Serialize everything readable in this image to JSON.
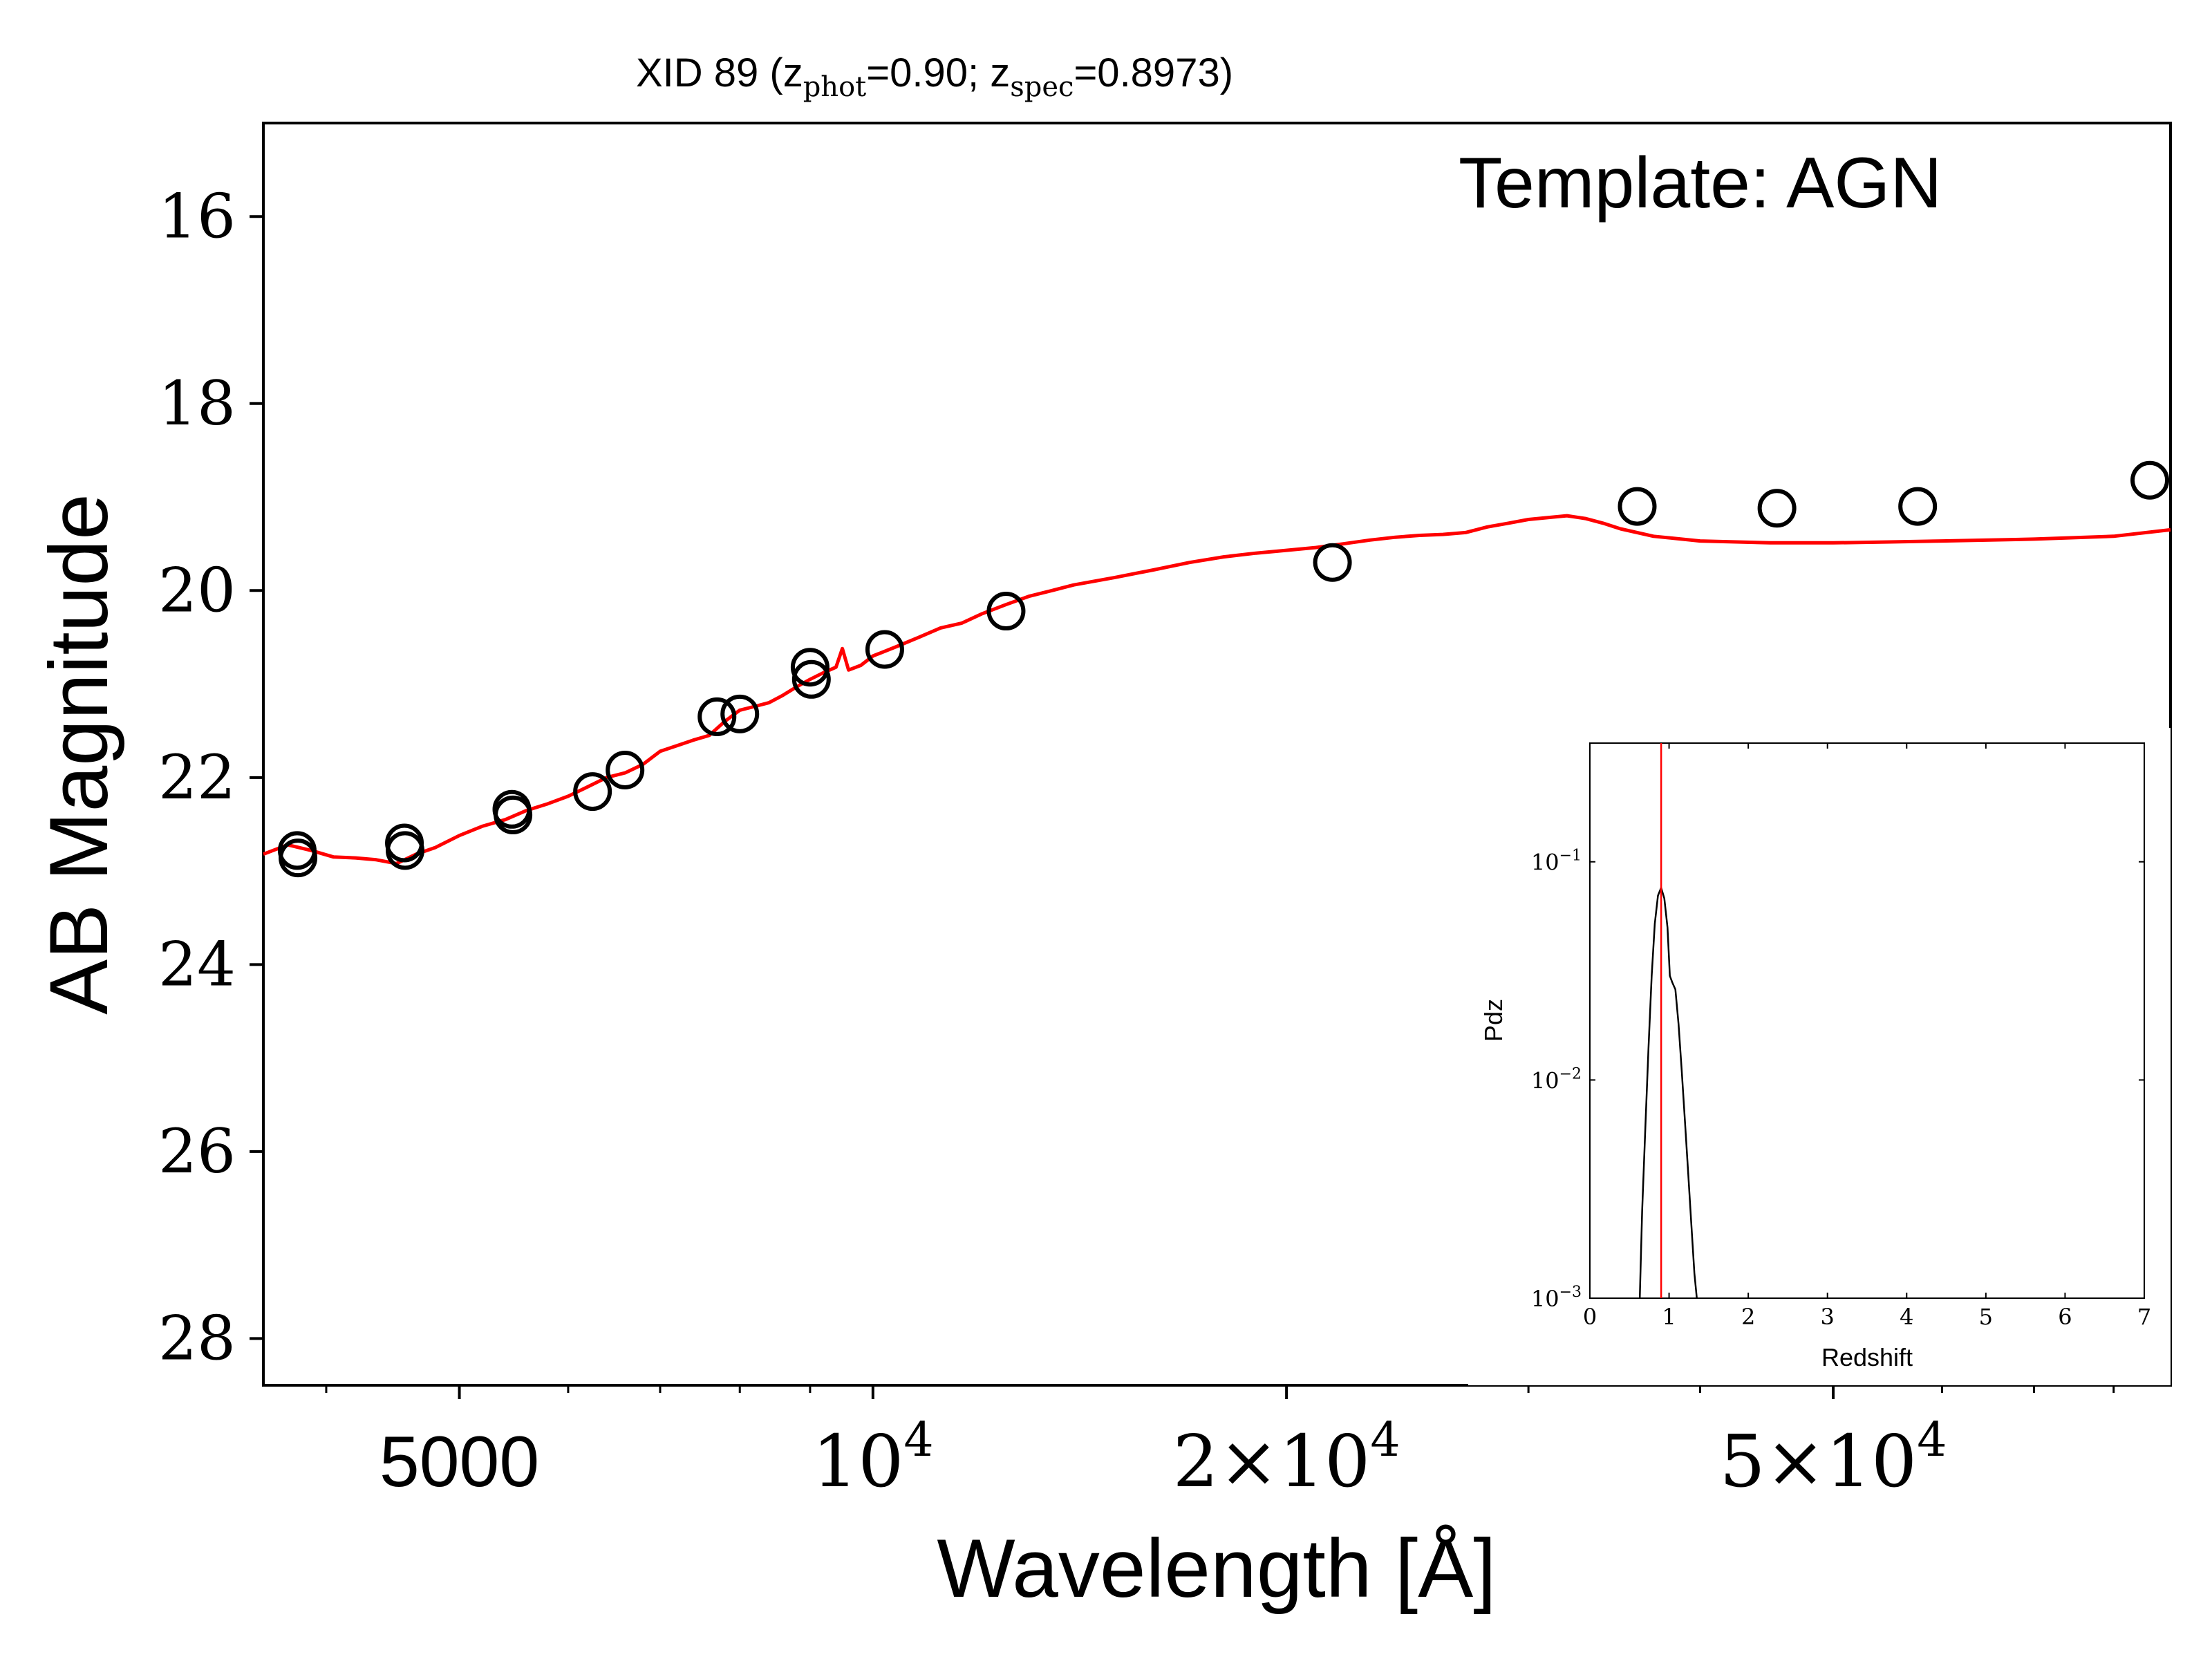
{
  "chart_data": [
    {
      "type": "scatter",
      "title": {
        "prefix": "XID 89 (z",
        "sub1": "phot",
        "mid": "=0.90; z",
        "sub2": "spec",
        "suffix": "=0.8973)"
      },
      "annotation": "Template: AGN",
      "xlabel": "Wavelength [Å]",
      "ylabel": "AB Magnitude",
      "x_scale": "log",
      "xlim": [
        3600,
        88000
      ],
      "ylim": [
        28.5,
        15.0
      ],
      "y_inverted": true,
      "x_ticks": [
        {
          "value": 5000,
          "label": "5000"
        },
        {
          "value": 10000,
          "base": "10",
          "exp": "4"
        },
        {
          "value": 20000,
          "mant": "2",
          "times": "×",
          "base": "10",
          "exp": "4"
        },
        {
          "value": 50000,
          "mant": "5",
          "times": "×",
          "base": "10",
          "exp": "4"
        }
      ],
      "x_minor_ticks": [
        4000,
        6000,
        7000,
        8000,
        9000,
        30000,
        40000,
        60000,
        70000,
        80000
      ],
      "y_ticks": [
        16,
        18,
        20,
        22,
        24,
        26,
        28
      ],
      "series": [
        {
          "kind": "points",
          "marker": "open-circle",
          "color": "#000000",
          "x": [
            3810,
            3815,
            4560,
            4565,
            5460,
            5470,
            6250,
            6600,
            7700,
            8000,
            9000,
            9020,
            10200,
            12500,
            21600,
            36000,
            45500,
            57600,
            85000
          ],
          "y": [
            22.78,
            22.86,
            22.7,
            22.78,
            22.34,
            22.4,
            22.15,
            21.92,
            21.35,
            21.32,
            20.82,
            20.95,
            20.63,
            20.22,
            19.7,
            19.1,
            19.12,
            19.1,
            18.82
          ]
        },
        {
          "kind": "line",
          "color": "#ff0000",
          "x": [
            3600,
            3750,
            3900,
            4050,
            4200,
            4350,
            4500,
            4650,
            4800,
            5000,
            5200,
            5400,
            5600,
            5800,
            6000,
            6200,
            6400,
            6600,
            6800,
            7000,
            7200,
            7400,
            7600,
            7800,
            8000,
            8200,
            8400,
            8600,
            8800,
            9000,
            9200,
            9400,
            9500,
            9600,
            9800,
            10000,
            10400,
            10800,
            11200,
            11600,
            12000,
            12500,
            13000,
            13500,
            14000,
            15000,
            16000,
            17000,
            18000,
            19000,
            20000,
            21000,
            22000,
            23000,
            24000,
            25000,
            26000,
            27000,
            28000,
            29000,
            30000,
            31000,
            32000,
            33000,
            34000,
            35000,
            37000,
            40000,
            45000,
            50000,
            55000,
            60000,
            70000,
            80000,
            88000
          ],
          "y": [
            22.82,
            22.72,
            22.78,
            22.85,
            22.86,
            22.88,
            22.92,
            22.82,
            22.75,
            22.62,
            22.52,
            22.45,
            22.35,
            22.28,
            22.2,
            22.1,
            22.0,
            21.95,
            21.86,
            21.72,
            21.66,
            21.6,
            21.55,
            21.4,
            21.28,
            21.24,
            21.2,
            21.12,
            21.03,
            20.95,
            20.88,
            20.82,
            20.62,
            20.85,
            20.8,
            20.7,
            20.6,
            20.5,
            20.4,
            20.35,
            20.25,
            20.15,
            20.06,
            20.0,
            19.94,
            19.86,
            19.78,
            19.7,
            19.64,
            19.6,
            19.57,
            19.54,
            19.5,
            19.46,
            19.43,
            19.41,
            19.4,
            19.38,
            19.32,
            19.28,
            19.24,
            19.22,
            19.2,
            19.23,
            19.28,
            19.34,
            19.42,
            19.47,
            19.49,
            19.49,
            19.48,
            19.47,
            19.45,
            19.42,
            19.35
          ]
        }
      ]
    },
    {
      "type": "line",
      "role": "inset",
      "xlabel": "Redshift",
      "ylabel": "Pdz",
      "y_scale": "log",
      "xlim": [
        0,
        7
      ],
      "ylim": [
        0.001,
        0.35
      ],
      "x_ticks": [
        0,
        1,
        2,
        3,
        4,
        5,
        6,
        7
      ],
      "y_ticks": [
        {
          "value": 0.1,
          "base": "10",
          "exp": "−1"
        },
        {
          "value": 0.01,
          "base": "10",
          "exp": "−2"
        },
        {
          "value": 0.001,
          "base": "10",
          "exp": "−3"
        }
      ],
      "vline": {
        "x": 0.9,
        "color": "#ff0000"
      },
      "series": [
        {
          "color": "#000000",
          "x": [
            0.63,
            0.66,
            0.7,
            0.74,
            0.78,
            0.82,
            0.86,
            0.9,
            0.94,
            0.98,
            1.01,
            1.04,
            1.08,
            1.12,
            1.16,
            1.2,
            1.24,
            1.28,
            1.32,
            1.35
          ],
          "y": [
            0.001,
            0.0025,
            0.006,
            0.014,
            0.03,
            0.052,
            0.07,
            0.076,
            0.068,
            0.05,
            0.03,
            0.028,
            0.026,
            0.018,
            0.011,
            0.0065,
            0.0038,
            0.0022,
            0.0013,
            0.001
          ]
        }
      ]
    }
  ]
}
